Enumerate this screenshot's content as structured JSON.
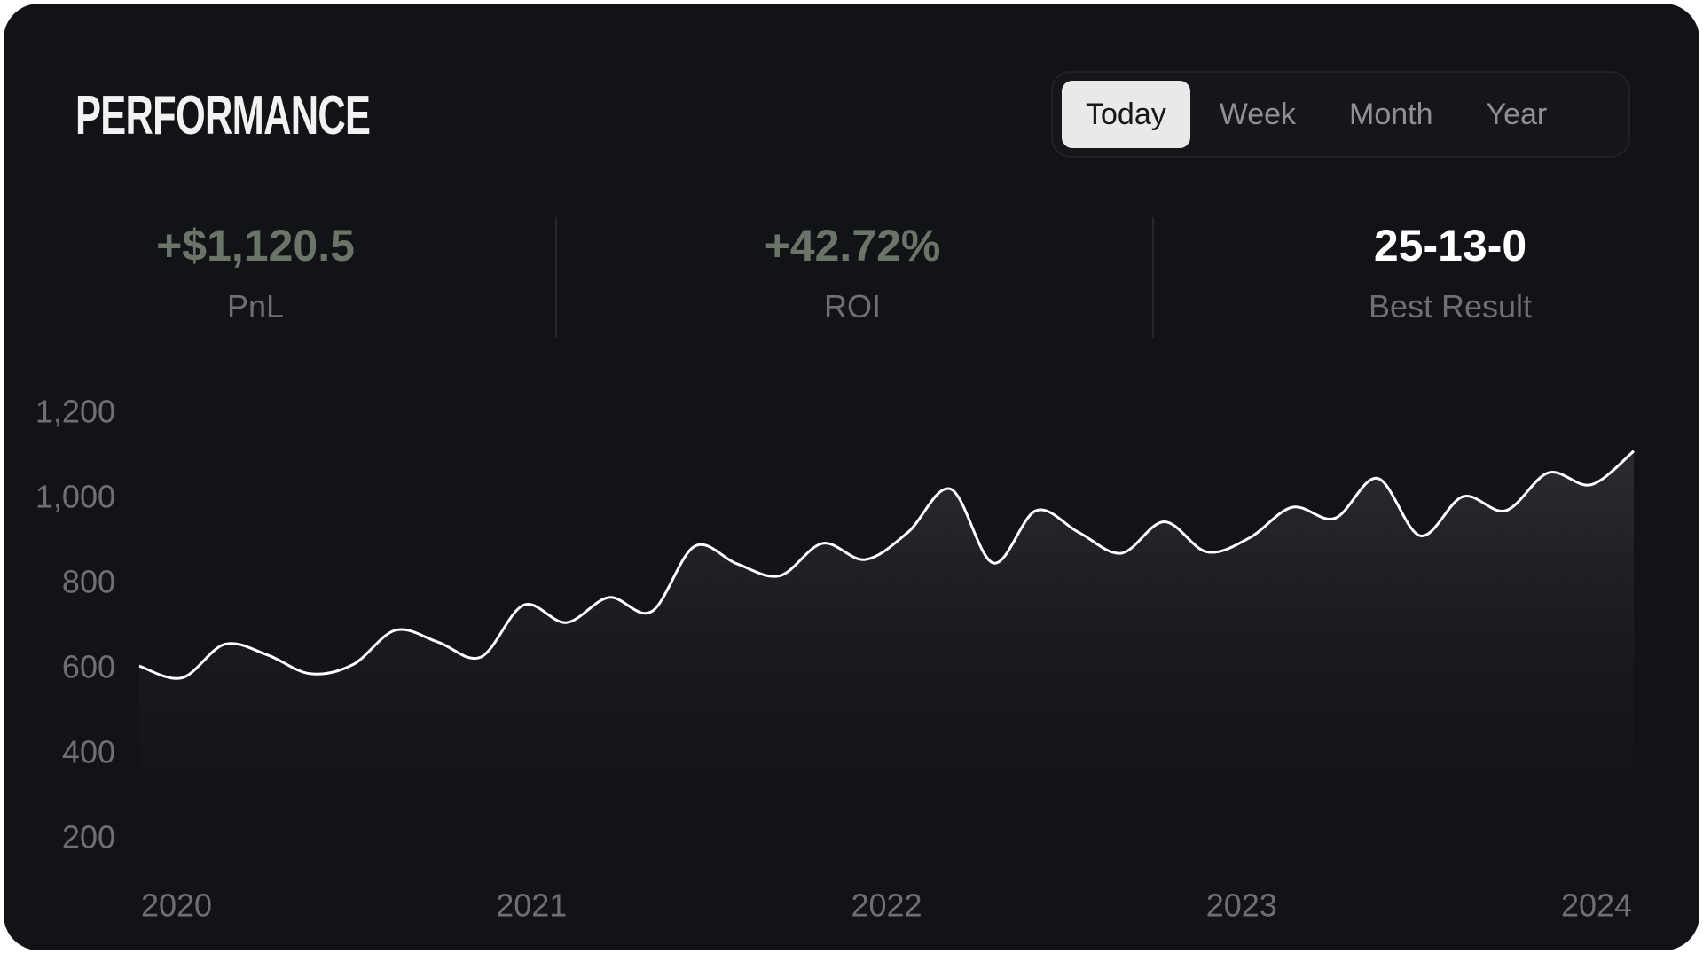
{
  "header": {
    "title": "PERFORMANCE",
    "tabs": [
      "Today",
      "Week",
      "Month",
      "Year"
    ]
  },
  "stats": [
    {
      "value": "+$1,120.5",
      "label": "PnL"
    },
    {
      "value": "+42.72%",
      "label": "ROI"
    },
    {
      "value": "25-13-0",
      "label": "Best Result"
    }
  ],
  "chart_data": {
    "type": "area",
    "color": "#ffffff",
    "values": [
      608,
      580,
      659,
      634,
      590,
      611,
      692,
      664,
      629,
      751,
      710,
      769,
      736,
      889,
      848,
      820,
      896,
      858,
      922,
      1024,
      850,
      973,
      922,
      873,
      947,
      876,
      909,
      981,
      955,
      1049,
      914,
      1006,
      973,
      1062,
      1034,
      1113
    ],
    "xlim": [
      2020,
      2024
    ],
    "xticks": [
      2020,
      2021,
      2022,
      2023,
      2024
    ],
    "ylim": [
      200,
      1200
    ],
    "yticks": [
      {
        "value": 200,
        "label": "200"
      },
      {
        "value": 400,
        "label": "400"
      },
      {
        "value": 600,
        "label": "600"
      },
      {
        "value": 800,
        "label": "800"
      },
      {
        "value": 1000,
        "label": "1,000"
      },
      {
        "value": 1200,
        "label": "1,200"
      }
    ],
    "grid": false
  }
}
